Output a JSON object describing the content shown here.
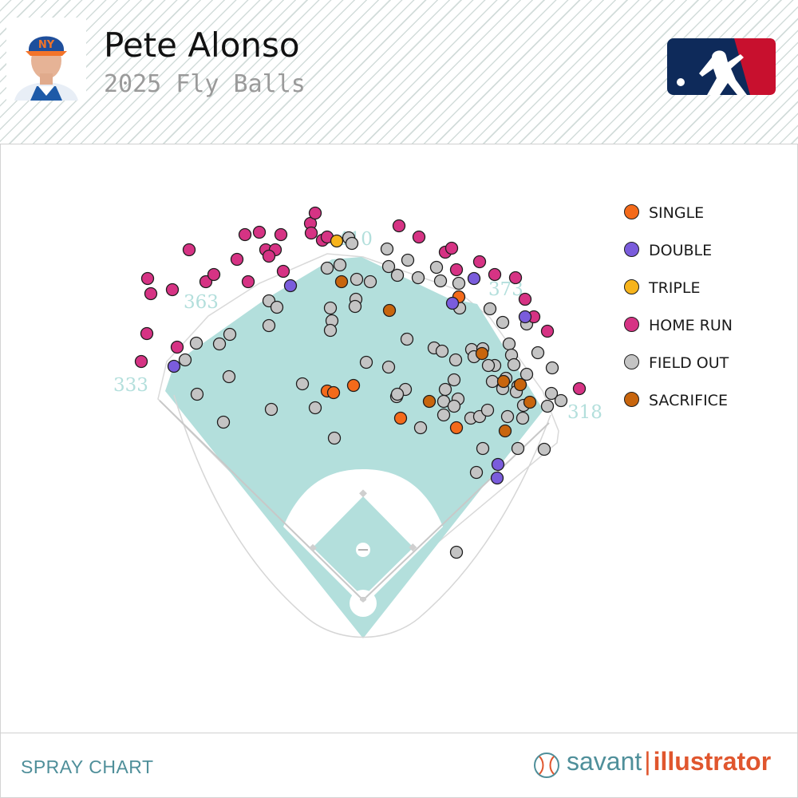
{
  "header": {
    "player_name": "Pete Alonso",
    "subtitle": "2025 Fly Balls"
  },
  "footer": {
    "label": "SPRAY CHART",
    "brand_a": "savant",
    "brand_sep": "|",
    "brand_b": "illustrator"
  },
  "colors": {
    "single": "#f46a1a",
    "double": "#7a5cdc",
    "triple": "#f7b41c",
    "home_run": "#d63384",
    "field_out": "#c4c4c4",
    "sacrifice": "#c8650d",
    "outfield_grass": "#b3dfdc",
    "mlb_blue": "#0e2a5a",
    "mlb_red": "#c8102e"
  },
  "chart_data": {
    "type": "scatter",
    "title": "",
    "xlabel": "",
    "ylabel": "",
    "fence_distances": [
      {
        "label": "333"
      },
      {
        "label": "363"
      },
      {
        "label": "410"
      },
      {
        "label": "373"
      },
      {
        "label": "318"
      }
    ],
    "legend_placement": "top-right",
    "series": [
      {
        "key": "single",
        "name": "SINGLE",
        "color": "#f46a1a",
        "points": [
          [
            410,
            490
          ],
          [
            418,
            492
          ],
          [
            443,
            483
          ],
          [
            502,
            524
          ],
          [
            572,
            536
          ],
          [
            575,
            372
          ]
        ]
      },
      {
        "key": "double",
        "name": "DOUBLE",
        "color": "#7a5cdc",
        "points": [
          [
            364,
            358
          ],
          [
            218,
            459
          ],
          [
            594,
            349
          ],
          [
            567,
            380
          ],
          [
            658,
            397
          ],
          [
            624,
            582
          ],
          [
            623,
            599
          ]
        ]
      },
      {
        "key": "triple",
        "name": "TRIPLE",
        "color": "#f7b41c",
        "points": [
          [
            422,
            302
          ]
        ]
      },
      {
        "key": "home_run",
        "name": "HOME RUN",
        "color": "#d63384",
        "points": [
          [
            237,
            313
          ],
          [
            185,
            349
          ],
          [
            189,
            368
          ],
          [
            216,
            363
          ],
          [
            258,
            353
          ],
          [
            268,
            344
          ],
          [
            297,
            325
          ],
          [
            311,
            353
          ],
          [
            307,
            294
          ],
          [
            325,
            291
          ],
          [
            352,
            294
          ],
          [
            333,
            313
          ],
          [
            345,
            313
          ],
          [
            337,
            321
          ],
          [
            355,
            340
          ],
          [
            389,
            280
          ],
          [
            395,
            267
          ],
          [
            390,
            292
          ],
          [
            404,
            301
          ],
          [
            410,
            297
          ],
          [
            500,
            283
          ],
          [
            525,
            297
          ],
          [
            558,
            316
          ],
          [
            566,
            311
          ],
          [
            572,
            338
          ],
          [
            601,
            328
          ],
          [
            620,
            344
          ],
          [
            646,
            348
          ],
          [
            658,
            375
          ],
          [
            669,
            397
          ],
          [
            686,
            415
          ],
          [
            184,
            418
          ],
          [
            222,
            435
          ],
          [
            177,
            453
          ],
          [
            726,
            487
          ]
        ]
      },
      {
        "key": "field_out",
        "name": "FIELD OUT",
        "color": "#c4c4c4",
        "points": [
          [
            437,
            298
          ],
          [
            441,
            305
          ],
          [
            485,
            312
          ],
          [
            410,
            336
          ],
          [
            426,
            332
          ],
          [
            447,
            350
          ],
          [
            464,
            353
          ],
          [
            498,
            345
          ],
          [
            487,
            334
          ],
          [
            511,
            326
          ],
          [
            524,
            348
          ],
          [
            552,
            352
          ],
          [
            575,
            355
          ],
          [
            547,
            335
          ],
          [
            576,
            386
          ],
          [
            337,
            377
          ],
          [
            347,
            385
          ],
          [
            414,
            386
          ],
          [
            446,
            375
          ],
          [
            445,
            384
          ],
          [
            416,
            402
          ],
          [
            414,
            414
          ],
          [
            337,
            408
          ],
          [
            288,
            419
          ],
          [
            275,
            431
          ],
          [
            246,
            430
          ],
          [
            232,
            451
          ],
          [
            510,
            425
          ],
          [
            544,
            436
          ],
          [
            554,
            440
          ],
          [
            591,
            438
          ],
          [
            605,
            437
          ],
          [
            594,
            447
          ],
          [
            571,
            451
          ],
          [
            614,
            387
          ],
          [
            630,
            404
          ],
          [
            660,
            406
          ],
          [
            638,
            431
          ],
          [
            641,
            445
          ],
          [
            644,
            457
          ],
          [
            620,
            458
          ],
          [
            612,
            458
          ],
          [
            674,
            442
          ],
          [
            692,
            461
          ],
          [
            660,
            469
          ],
          [
            634,
            474
          ],
          [
            630,
            487
          ],
          [
            617,
            478
          ],
          [
            649,
            484
          ],
          [
            647,
            491
          ],
          [
            459,
            454
          ],
          [
            487,
            460
          ],
          [
            569,
            476
          ],
          [
            558,
            488
          ],
          [
            574,
            500
          ],
          [
            556,
            503
          ],
          [
            569,
            509
          ],
          [
            556,
            520
          ],
          [
            590,
            524
          ],
          [
            601,
            522
          ],
          [
            611,
            514
          ],
          [
            636,
            522
          ],
          [
            656,
            508
          ],
          [
            655,
            524
          ],
          [
            686,
            509
          ],
          [
            691,
            493
          ],
          [
            703,
            502
          ],
          [
            287,
            472
          ],
          [
            247,
            494
          ],
          [
            280,
            529
          ],
          [
            340,
            513
          ],
          [
            379,
            481
          ],
          [
            395,
            511
          ],
          [
            419,
            549
          ],
          [
            497,
            497
          ],
          [
            508,
            488
          ],
          [
            498,
            494
          ],
          [
            527,
            536
          ],
          [
            605,
            562
          ],
          [
            649,
            562
          ],
          [
            682,
            563
          ],
          [
            597,
            592
          ],
          [
            572,
            692
          ]
        ]
      },
      {
        "key": "sacrifice",
        "name": "SACRIFICE",
        "color": "#c8650d",
        "points": [
          [
            428,
            353
          ],
          [
            488,
            389
          ],
          [
            604,
            443
          ],
          [
            631,
            478
          ],
          [
            652,
            482
          ],
          [
            538,
            503
          ],
          [
            664,
            504
          ],
          [
            633,
            540
          ]
        ]
      }
    ]
  }
}
